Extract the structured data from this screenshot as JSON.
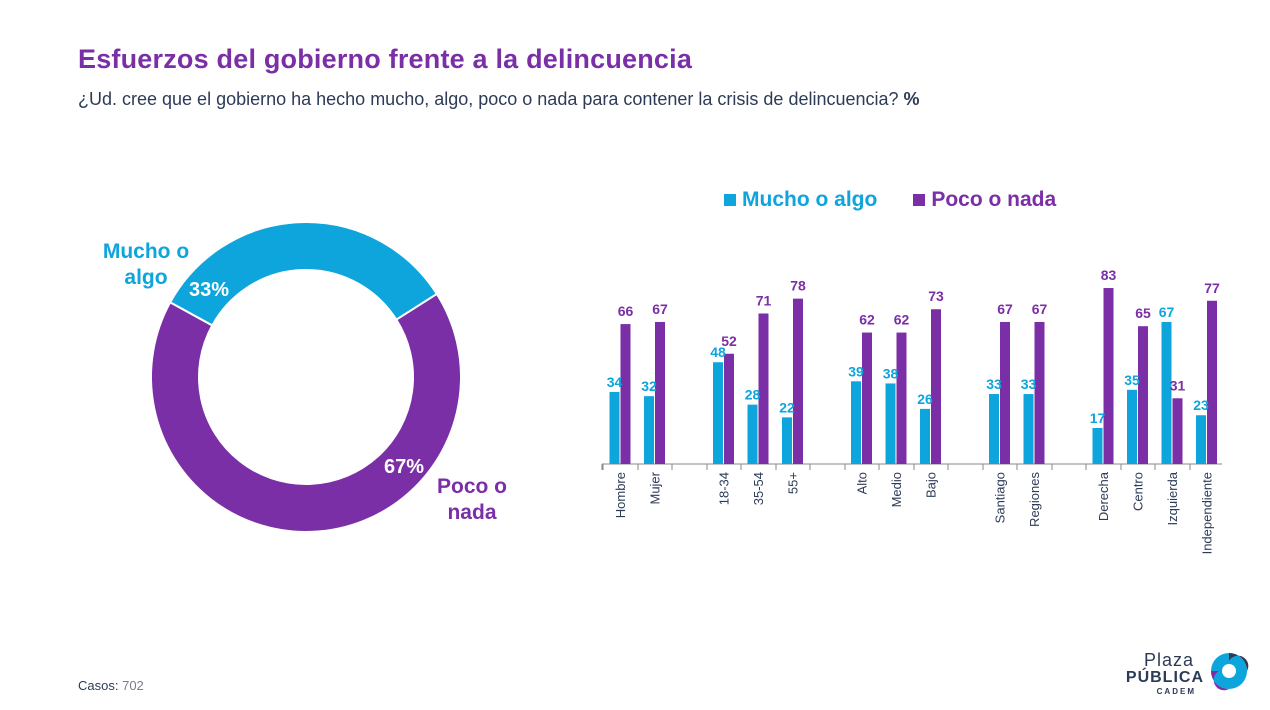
{
  "header": {
    "title": "Esfuerzos del gobierno frente a la delincuencia",
    "subtitle": "¿Ud. cree que el gobierno ha hecho mucho, algo, poco o nada para contener la crisis de delincuencia?",
    "subtitle_unit": "%"
  },
  "colors": {
    "mucho": "#0ea5dc",
    "poco": "#7b2fa6",
    "title": "#7b2fa6",
    "text": "#2d3b57"
  },
  "chart_data": [
    {
      "type": "pie",
      "donut": true,
      "slices": [
        {
          "label_line1": "Mucho o",
          "label_line2": "algo",
          "value": 33,
          "value_label": "33%"
        },
        {
          "label_line1": "Poco o",
          "label_line2": "nada",
          "value": 67,
          "value_label": "67%"
        }
      ]
    },
    {
      "type": "bar",
      "legend": {
        "placement": "top",
        "items": [
          "Mucho o algo",
          "Poco o nada"
        ]
      },
      "ylim": [
        0,
        100
      ],
      "groups": [
        {
          "categories": [
            {
              "name": "Hombre",
              "mucho": 34,
              "poco": 66
            },
            {
              "name": "Mujer",
              "mucho": 32,
              "poco": 67
            }
          ]
        },
        {
          "categories": [
            {
              "name": "18-34",
              "mucho": 48,
              "poco": 52
            },
            {
              "name": "35-54",
              "mucho": 28,
              "poco": 71
            },
            {
              "name": "55+",
              "mucho": 22,
              "poco": 78
            }
          ]
        },
        {
          "categories": [
            {
              "name": "Alto",
              "mucho": 39,
              "poco": 62
            },
            {
              "name": "Medio",
              "mucho": 38,
              "poco": 62
            },
            {
              "name": "Bajo",
              "mucho": 26,
              "poco": 73
            }
          ]
        },
        {
          "categories": [
            {
              "name": "Santiago",
              "mucho": 33,
              "poco": 67
            },
            {
              "name": "Regiones",
              "mucho": 33,
              "poco": 67
            }
          ]
        },
        {
          "categories": [
            {
              "name": "Derecha",
              "mucho": 17,
              "poco": 83
            },
            {
              "name": "Centro",
              "mucho": 35,
              "poco": 65
            },
            {
              "name": "Izquierda",
              "mucho": 67,
              "poco": 31
            },
            {
              "name": "Independiente",
              "mucho": 23,
              "poco": 77
            }
          ]
        }
      ]
    }
  ],
  "footer": {
    "label": "Casos",
    "value": "702"
  },
  "logo": {
    "line1": "Plaza",
    "line2": "PÚBLICA",
    "line3": "CADEM"
  }
}
